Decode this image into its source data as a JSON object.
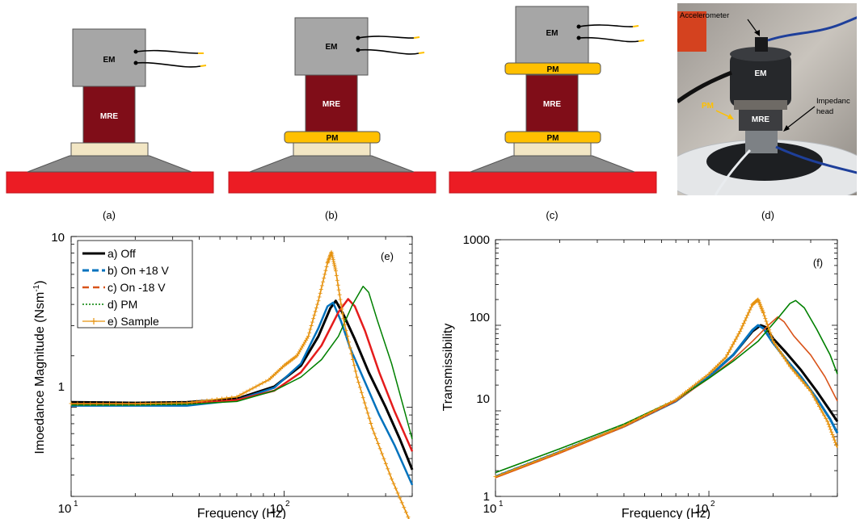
{
  "schematics": {
    "a": {
      "em": "EM",
      "mre": "MRE"
    },
    "b": {
      "em": "EM",
      "mre": "MRE",
      "pm_bottom": "PM"
    },
    "c": {
      "em": "EM",
      "mre": "MRE",
      "pm_top": "PM",
      "pm_bottom": "PM"
    },
    "photo": {
      "accelerometer": "Accelerometer",
      "em": "EM",
      "pm": "PM",
      "mre": "MRE",
      "impedance_head_1": "Impedanc",
      "impedance_head_2": "head"
    }
  },
  "panel_labels": {
    "a": "(a)",
    "b": "(b)",
    "c": "(c)",
    "d": "(d)",
    "e": "(e)",
    "f": "(f)"
  },
  "colors": {
    "em": "#a6a6a6",
    "mre": "#800d18",
    "pm": "#ffc000",
    "base_top": "#f2e6c4",
    "base_cone": "#8a8a8a",
    "base_slab": "#ec1c24",
    "series_off": "#000000",
    "series_pos": "#0072bd",
    "series_neg": "#d95319",
    "series_pm": "#008000",
    "series_sample": "#e6920f",
    "series_red": "#e51c1c"
  },
  "chart_data": [
    {
      "type": "line",
      "panel": "(e)",
      "xlabel": "Frequency (Hz)",
      "ylabel": "Imoedance Magnitude (Nsm",
      "ylabel_sup": "-1",
      "ylabel_close": ")",
      "xscale": "log",
      "yscale": "log",
      "xlim": [
        10,
        400
      ],
      "ylim": [
        0.3,
        10
      ],
      "xticks": [
        "10",
        "10",
        "10"
      ],
      "xtick_exps": [
        "1",
        "2"
      ],
      "yticks": [
        "1",
        "10"
      ],
      "legend": {
        "placement": "top-left",
        "entries": [
          "a) Off",
          "b) On +18 V",
          "c) On -18 V",
          "d) PM",
          "e) Sample"
        ]
      },
      "series": [
        {
          "name": "a) Off",
          "style": "solid-thick",
          "x": [
            10,
            20,
            35,
            60,
            90,
            120,
            145,
            165,
            175,
            190,
            215,
            250,
            300,
            350,
            400
          ],
          "y": [
            1.07,
            1.06,
            1.07,
            1.12,
            1.32,
            1.75,
            2.6,
            3.8,
            4.2,
            3.5,
            2.5,
            1.6,
            1.0,
            0.65,
            0.43
          ]
        },
        {
          "name": "b) On +18 V",
          "style": "dashed",
          "x": [
            10,
            20,
            35,
            60,
            90,
            120,
            145,
            160,
            170,
            185,
            205,
            240,
            280,
            330,
            400
          ],
          "y": [
            1.02,
            1.02,
            1.02,
            1.1,
            1.3,
            1.8,
            2.9,
            3.9,
            4.1,
            3.2,
            2.2,
            1.4,
            0.9,
            0.6,
            0.35
          ]
        },
        {
          "name": "c) On -18 V",
          "style": "dashed",
          "x": [
            10,
            20,
            35,
            60,
            90,
            120,
            150,
            180,
            200,
            215,
            240,
            280,
            330,
            400
          ],
          "y": [
            1.04,
            1.04,
            1.05,
            1.1,
            1.25,
            1.6,
            2.3,
            3.6,
            4.3,
            3.9,
            2.8,
            1.6,
            0.95,
            0.55
          ]
        },
        {
          "name": "d) PM",
          "style": "dotted",
          "x": [
            10,
            20,
            35,
            60,
            90,
            120,
            150,
            180,
            210,
            235,
            250,
            275,
            320,
            400
          ],
          "y": [
            1.03,
            1.03,
            1.04,
            1.08,
            1.25,
            1.5,
            1.9,
            2.6,
            4.0,
            5.1,
            4.7,
            3.2,
            1.8,
            0.65
          ]
        },
        {
          "name": "e) Sample",
          "style": "plus",
          "x": [
            10,
            20,
            35,
            60,
            85,
            100,
            115,
            130,
            145,
            160,
            167,
            175,
            190,
            220,
            260,
            320,
            400
          ],
          "y": [
            1.05,
            1.05,
            1.06,
            1.15,
            1.45,
            1.75,
            2.0,
            2.6,
            4.2,
            7.0,
            8.1,
            6.3,
            3.3,
            1.5,
            0.75,
            0.38,
            0.2
          ]
        }
      ]
    },
    {
      "type": "line",
      "panel": "(f)",
      "xlabel": "Frequency (Hz)",
      "ylabel": "Transmissibility",
      "xscale": "log",
      "yscale": "log",
      "xlim": [
        10,
        400
      ],
      "ylim": [
        1,
        1000
      ],
      "xticks": [
        "10",
        "10"
      ],
      "xtick_exps": [
        "1",
        "2"
      ],
      "yticks": [
        "1",
        "10",
        "100",
        "1000"
      ],
      "series": [
        {
          "name": "a) Off",
          "style": "solid-thick",
          "x": [
            10,
            20,
            40,
            70,
            100,
            130,
            160,
            175,
            185,
            200,
            230,
            270,
            320,
            370,
            400
          ],
          "y": [
            1.7,
            3.3,
            6.6,
            13,
            25,
            45,
            85,
            100,
            95,
            70,
            48,
            30,
            17,
            10,
            7.5
          ]
        },
        {
          "name": "b) On +18 V",
          "style": "solid-thick",
          "x": [
            10,
            20,
            40,
            70,
            100,
            130,
            160,
            170,
            180,
            200,
            230,
            270,
            320,
            370,
            400
          ],
          "y": [
            1.7,
            3.3,
            6.6,
            13,
            25,
            45,
            88,
            100,
            92,
            62,
            40,
            25,
            14,
            8,
            5.5
          ]
        },
        {
          "name": "c) On -18 V",
          "style": "solid",
          "x": [
            10,
            20,
            40,
            70,
            100,
            130,
            160,
            190,
            210,
            225,
            250,
            300,
            350,
            400
          ],
          "y": [
            1.65,
            3.2,
            6.5,
            13,
            24,
            40,
            65,
            100,
            125,
            110,
            75,
            45,
            25,
            13
          ]
        },
        {
          "name": "d) PM",
          "style": "solid",
          "x": [
            10,
            20,
            40,
            70,
            100,
            130,
            170,
            210,
            240,
            255,
            280,
            320,
            370,
            400
          ],
          "y": [
            1.9,
            3.6,
            7.0,
            13.5,
            24,
            38,
            65,
            120,
            180,
            195,
            160,
            90,
            45,
            27
          ]
        },
        {
          "name": "e) Sample",
          "style": "plus",
          "x": [
            10,
            20,
            40,
            70,
            100,
            120,
            140,
            160,
            170,
            180,
            200,
            240,
            300,
            360,
            400
          ],
          "y": [
            1.7,
            3.3,
            6.7,
            13.5,
            27,
            42,
            85,
            175,
            200,
            140,
            65,
            33,
            17,
            7.5,
            3.7
          ]
        }
      ]
    }
  ]
}
